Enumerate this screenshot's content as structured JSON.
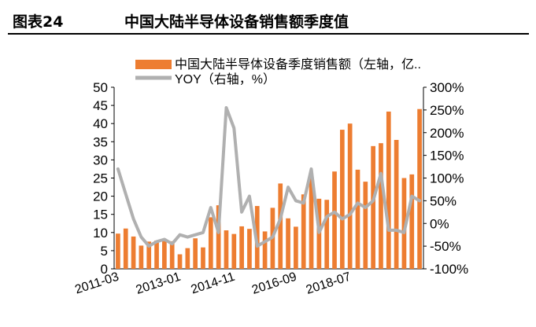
{
  "figure": {
    "label": "图表24",
    "title": "中国大陆半导体设备销售额季度值"
  },
  "chart_data": {
    "type": "bar",
    "x_tick_labels": [
      "2011-03",
      "2013-01",
      "2014-11",
      "2016-09",
      "2018-07"
    ],
    "categories": [
      "2011-03",
      "2011-06",
      "2011-09",
      "2011-12",
      "2012-03",
      "2012-06",
      "2012-09",
      "2012-12",
      "2013-03",
      "2013-06",
      "2013-09",
      "2013-12",
      "2014-03",
      "2014-06",
      "2014-09",
      "2014-12",
      "2015-03",
      "2015-06",
      "2015-09",
      "2015-12",
      "2016-03",
      "2016-06",
      "2016-09",
      "2016-12",
      "2017-03",
      "2017-06",
      "2017-09",
      "2017-12",
      "2018-03",
      "2018-06",
      "2018-09",
      "2018-12",
      "2019-03",
      "2019-06",
      "2019-09",
      "2019-12",
      "2020-03",
      "2020-06",
      "2020-09",
      "2020-12"
    ],
    "series": [
      {
        "name": "中国大陆半导体设备季度销售额（左轴，亿..",
        "type": "bar",
        "axis": "left",
        "color": "#ed7d31",
        "values": [
          9.7,
          11.1,
          8.9,
          6.4,
          7.5,
          7.8,
          8.0,
          7.6,
          4.0,
          5.7,
          8.4,
          5.9,
          14.2,
          17.5,
          10.6,
          9.6,
          11.7,
          11.0,
          17.3,
          10.3,
          16.8,
          23.5,
          13.9,
          11.6,
          20.5,
          25.3,
          19.3,
          19.0,
          26.8,
          38.3,
          40.0,
          27.3,
          24.0,
          33.8,
          34.6,
          43.3,
          35.5,
          25.0,
          26.0,
          44.0
        ]
      },
      {
        "name": "YOY（右轴，%）",
        "type": "line",
        "axis": "right",
        "color": "#b0b0b0",
        "values": [
          120,
          65,
          10,
          -30,
          -50,
          -40,
          -35,
          -45,
          -25,
          -30,
          -25,
          -20,
          35,
          -20,
          255,
          210,
          25,
          60,
          -50,
          -40,
          -30,
          10,
          80,
          50,
          45,
          120,
          -20,
          15,
          25,
          10,
          20,
          45,
          35,
          50,
          110,
          -15,
          -15,
          -20,
          60,
          50
        ]
      }
    ],
    "ylim_left": [
      0,
      50
    ],
    "yticks_left": [
      "0",
      "5",
      "10",
      "15",
      "20",
      "25",
      "30",
      "35",
      "40",
      "45",
      "50"
    ],
    "ylim_right": [
      -100,
      300
    ],
    "yticks_right": [
      "-100%",
      "-50%",
      "0%",
      "50%",
      "100%",
      "150%",
      "200%",
      "250%",
      "300%"
    ],
    "grid": false,
    "legend_position": "top"
  }
}
